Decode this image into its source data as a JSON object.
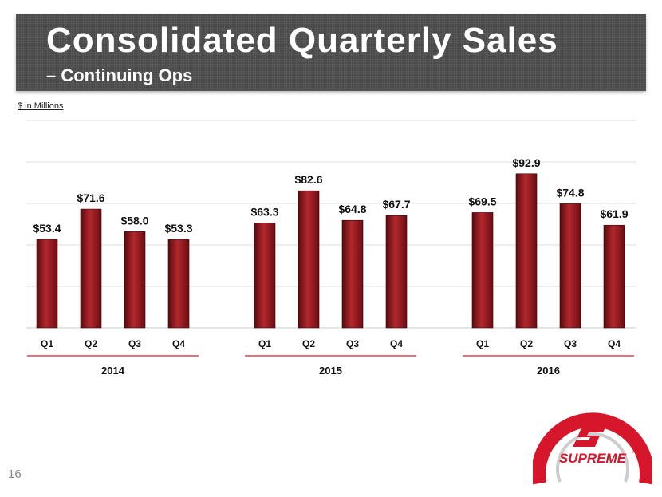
{
  "slide": {
    "title": "Consolidated Quarterly Sales",
    "subtitle": "– Continuing Ops",
    "units_note": "$ in Millions",
    "page_number": "16"
  },
  "logo": {
    "text": "SUPREME",
    "trademark": "™",
    "colors": {
      "red": "#d6162a",
      "gray": "#cccccc"
    }
  },
  "colors": {
    "bar_top": "#b3282d",
    "bar_bottom": "#5a0a0e",
    "underline": "#d21f2b",
    "grid": "#dddddd",
    "banner": "#4a4a4a"
  },
  "chart_data": {
    "type": "bar",
    "title": "Consolidated Quarterly Sales – Continuing Ops",
    "ylabel": "$ in Millions",
    "ylim": [
      0,
      125
    ],
    "groups": [
      {
        "year": "2014",
        "categories": [
          "Q1",
          "Q2",
          "Q3",
          "Q4"
        ],
        "values": [
          53.4,
          71.6,
          58.0,
          53.3
        ],
        "labels": [
          "$53.4",
          "$71.6",
          "$58.0",
          "$53.3"
        ]
      },
      {
        "year": "2015",
        "categories": [
          "Q1",
          "Q2",
          "Q3",
          "Q4"
        ],
        "values": [
          63.3,
          82.6,
          64.8,
          67.7
        ],
        "labels": [
          "$63.3",
          "$82.6",
          "$64.8",
          "$67.7"
        ]
      },
      {
        "year": "2016",
        "categories": [
          "Q1",
          "Q2",
          "Q3",
          "Q4"
        ],
        "values": [
          69.5,
          92.9,
          74.8,
          61.9
        ],
        "labels": [
          "$69.5",
          "$92.9",
          "$74.8",
          "$61.9"
        ]
      }
    ]
  }
}
